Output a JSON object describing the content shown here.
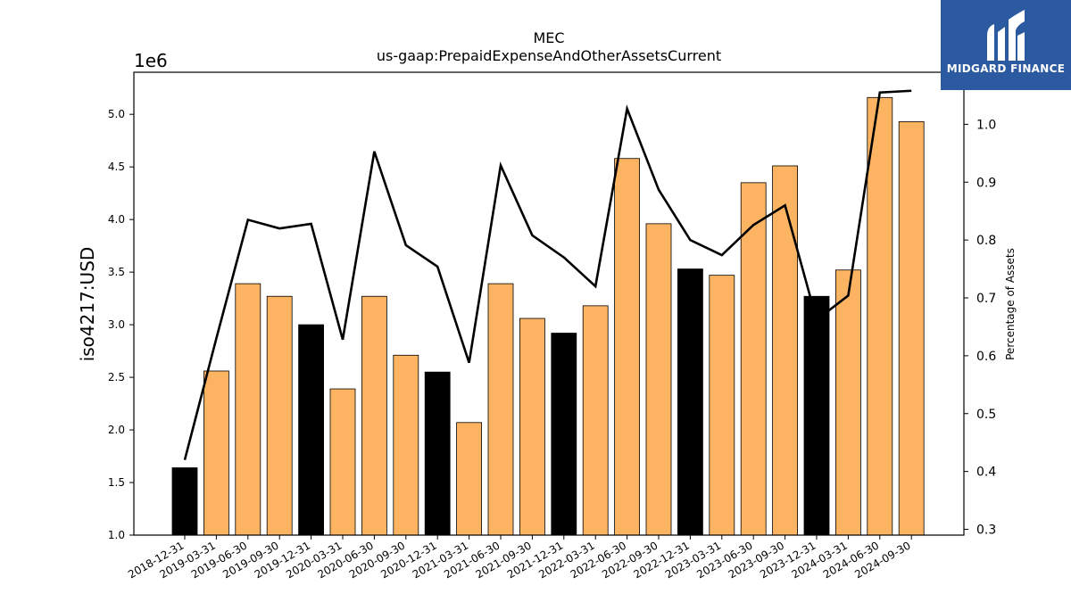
{
  "chart_data": {
    "type": "bar",
    "title": "MEC",
    "subtitle": "us-gaap:PrepaidExpenseAndOtherAssetsCurrent",
    "ylabel": "iso4217:USD",
    "ylabel_right": "Percentage of Assets",
    "y_offset_label": "1e6",
    "ylim": [
      1.0,
      5.4
    ],
    "ylim_right": [
      0.29,
      1.09
    ],
    "yticks": [
      "1.0",
      "1.5",
      "2.0",
      "2.5",
      "3.0",
      "3.5",
      "4.0",
      "4.5",
      "5.0"
    ],
    "yticks_right": [
      "0.3",
      "0.4",
      "0.5",
      "0.6",
      "0.7",
      "0.8",
      "0.9",
      "1.0"
    ],
    "categories": [
      "2018-12-31",
      "2019-03-31",
      "2019-06-30",
      "2019-09-30",
      "2019-12-31",
      "2020-03-31",
      "2020-06-30",
      "2020-09-30",
      "2020-12-31",
      "2021-03-31",
      "2021-06-30",
      "2021-09-30",
      "2021-12-31",
      "2022-03-31",
      "2022-06-30",
      "2022-09-30",
      "2022-12-31",
      "2023-03-31",
      "2023-06-30",
      "2023-09-30",
      "2023-12-31",
      "2024-03-31",
      "2024-06-30",
      "2024-09-30"
    ],
    "series": [
      {
        "kind": "bar",
        "values": [
          1.64,
          2.56,
          3.39,
          3.27,
          3.0,
          2.39,
          3.27,
          2.71,
          2.55,
          2.07,
          3.39,
          3.06,
          2.92,
          3.18,
          4.58,
          3.96,
          3.53,
          3.47,
          4.35,
          4.51,
          3.27,
          3.52,
          5.16,
          4.93
        ],
        "colors": [
          "#000000",
          "#fdb462",
          "#fdb462",
          "#fdb462",
          "#000000",
          "#fdb462",
          "#fdb462",
          "#fdb462",
          "#000000",
          "#fdb462",
          "#fdb462",
          "#fdb462",
          "#000000",
          "#fdb462",
          "#fdb462",
          "#fdb462",
          "#000000",
          "#fdb462",
          "#fdb462",
          "#fdb462",
          "#000000",
          "#fdb462",
          "#fdb462",
          "#fdb462"
        ]
      },
      {
        "kind": "line",
        "axis": "right",
        "color": "#000000",
        "values": [
          0.42,
          0.63,
          0.835,
          0.82,
          0.828,
          0.628,
          0.953,
          0.791,
          0.754,
          0.588,
          0.929,
          0.808,
          0.77,
          0.72,
          1.027,
          0.887,
          0.8,
          0.774,
          0.826,
          0.86,
          0.662,
          0.704,
          1.055,
          1.058
        ]
      }
    ],
    "legend": "none",
    "grid": false
  },
  "logo": {
    "text": "MIDGARD FINANCE",
    "bg_color": "#2c5aa0"
  }
}
